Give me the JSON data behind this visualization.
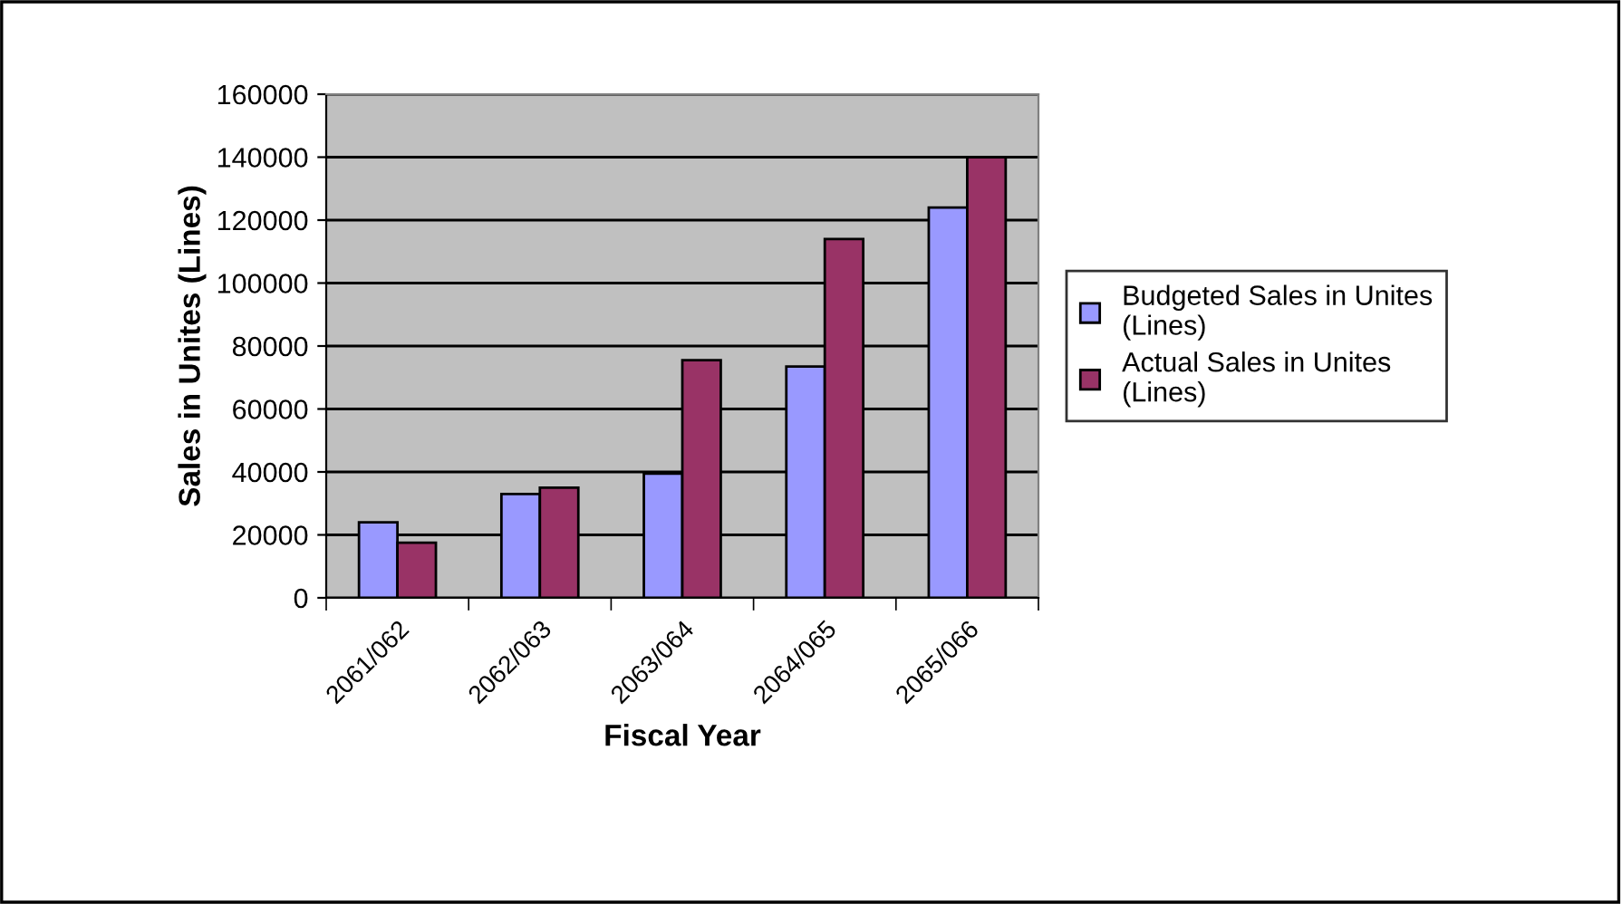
{
  "chart_data": {
    "type": "bar",
    "xlabel": "Fiscal Year",
    "ylabel": "Sales in Unites (Lines)",
    "categories": [
      "2061/062",
      "2062/063",
      "2063/064",
      "2064/065",
      "2065/066"
    ],
    "series": [
      {
        "name": "Budgeted Sales in Unites\n(Lines)",
        "color": "#9999ff",
        "values": [
          24000,
          33000,
          39500,
          73500,
          124000
        ]
      },
      {
        "name": "Actual Sales in Unites\n(Lines)",
        "color": "#993366",
        "values": [
          17500,
          35000,
          75500,
          114000,
          140000
        ]
      }
    ],
    "ylim": [
      0,
      160000
    ],
    "yticks": [
      0,
      20000,
      40000,
      60000,
      80000,
      100000,
      120000,
      140000,
      160000
    ],
    "grid": "y",
    "legend": "right"
  }
}
